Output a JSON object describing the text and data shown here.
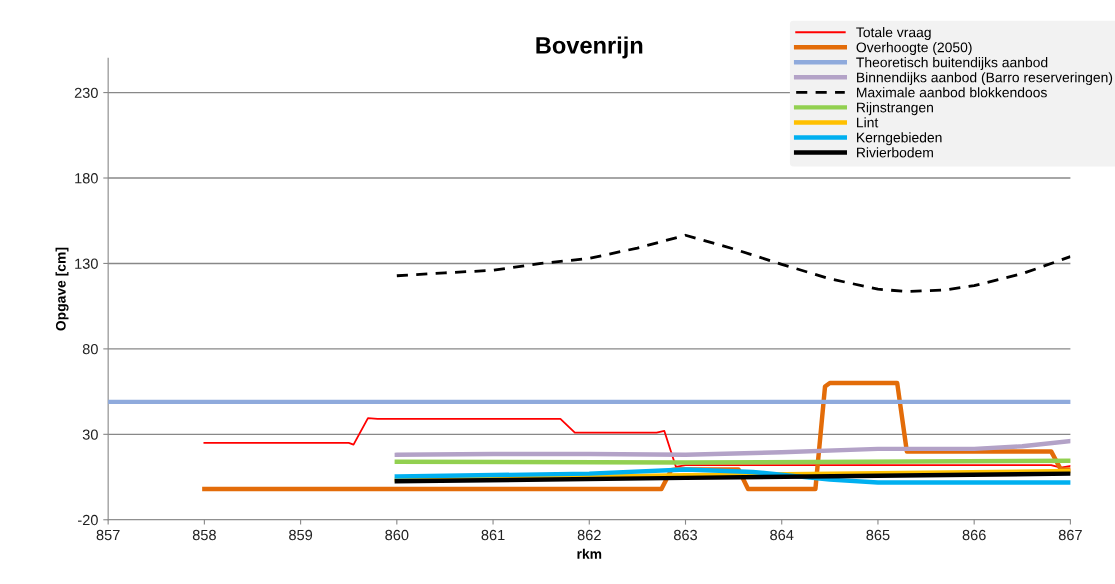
{
  "chart_data": {
    "type": "line",
    "title": "Bovenrijn",
    "xlabel": "rkm",
    "ylabel": "Opgave [cm]",
    "xlim": [
      857,
      867
    ],
    "xticks": [
      857,
      858,
      859,
      860,
      861,
      862,
      863,
      864,
      865,
      866,
      867
    ],
    "ylim": [
      -20,
      250
    ],
    "yticks": [
      -20,
      30,
      80,
      130,
      180,
      230
    ],
    "grid": "y",
    "legend": "top right",
    "marker": "none",
    "series": [
      {
        "name": "Totale vraag",
        "color": "#ff0000",
        "x": [
          858,
          859.5,
          859.55,
          859.7,
          859.8,
          861.7,
          861.85,
          862.0,
          862.7,
          862.78,
          862.9,
          863.0,
          865.3,
          866.8,
          866.9,
          867
        ],
        "values": [
          25,
          25,
          24,
          39.5,
          39,
          39,
          31,
          31,
          31,
          32,
          11,
          12,
          12,
          12,
          10.5,
          11.5
        ]
      },
      {
        "name": "Overhoogte (2050)",
        "color": "#e36c09",
        "x": [
          858,
          862.75,
          862.85,
          862.9,
          863.55,
          863.65,
          864.35,
          864.45,
          864.5,
          865.2,
          865.3,
          866.8,
          866.9,
          867
        ],
        "values": [
          -2,
          -2,
          9,
          9.5,
          9.5,
          -2,
          -2,
          58,
          60,
          60,
          20,
          20,
          9.5,
          9.5
        ]
      },
      {
        "name": "Theoretisch buitendijks aanbod",
        "color": "#8faadc",
        "x": [
          857,
          867
        ],
        "values": [
          49,
          49
        ]
      },
      {
        "name": "Binnendijks aanbod (Barro reserveringen)",
        "color": "#b3a2c7",
        "x": [
          860,
          861,
          862,
          863,
          864,
          865,
          866,
          866.5,
          867
        ],
        "values": [
          18,
          18.5,
          18.5,
          18,
          19.5,
          21.5,
          21.5,
          23,
          26
        ]
      },
      {
        "name": "Maximale aanbod blokkendoos",
        "color": "#000000",
        "line_style": "dashed",
        "x": [
          860,
          860.5,
          861,
          861.5,
          862,
          862.5,
          863,
          863.5,
          864,
          864.5,
          865,
          865.3,
          865.7,
          866,
          866.5,
          867
        ],
        "values": [
          122.8,
          124.5,
          126,
          130,
          133,
          139,
          146.5,
          138.5,
          129.5,
          121,
          115,
          113.5,
          114.5,
          117,
          124,
          134
        ]
      },
      {
        "name": "Rijnstrangen",
        "color": "#92d050",
        "x": [
          860,
          863,
          867
        ],
        "values": [
          14,
          13.5,
          14.5
        ]
      },
      {
        "name": "Lint",
        "color": "#ffc000",
        "x": [
          860,
          863,
          867
        ],
        "values": [
          3.5,
          6,
          8.5
        ]
      },
      {
        "name": "Kerngebieden",
        "color": "#00b0f0",
        "x": [
          860,
          862,
          863,
          863.7,
          864.5,
          865,
          866,
          867
        ],
        "values": [
          5.3,
          7,
          9.4,
          8,
          3.5,
          1.8,
          1.8,
          1.8
        ]
      },
      {
        "name": "Rivierbodem",
        "color": "#000000",
        "x": [
          860,
          863,
          867
        ],
        "values": [
          2.5,
          4.5,
          7
        ]
      }
    ]
  }
}
